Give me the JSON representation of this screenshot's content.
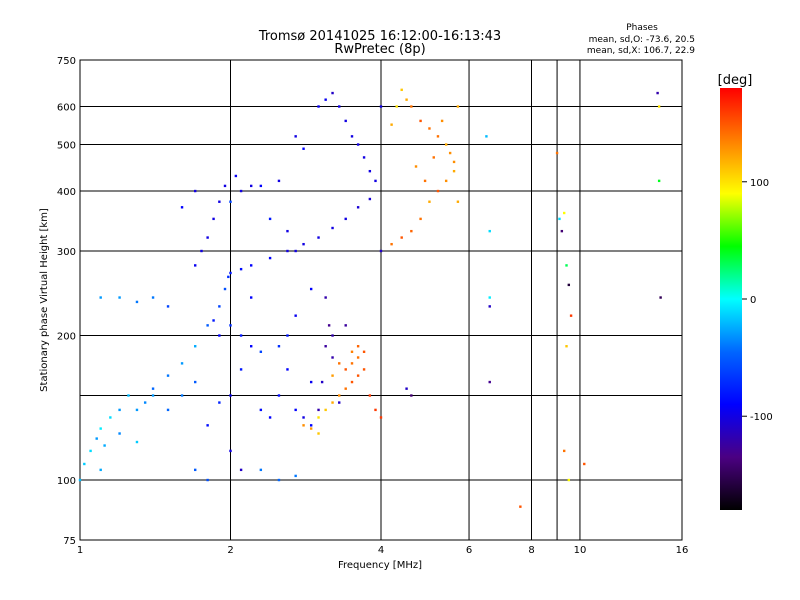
{
  "chart_data": {
    "type": "scatter",
    "title": "Tromsø 20141025 16:12:00-16:13:43",
    "subtitle": "RwPretec (8p)",
    "xlabel": "Frequency [MHz]",
    "ylabel": "Stationary phase Virtual Height [km]",
    "x_scale": "log",
    "y_scale": "log",
    "xlim": [
      1,
      16
    ],
    "ylim": [
      75,
      750
    ],
    "x_ticks": [
      1,
      2,
      4,
      6,
      8,
      10,
      16
    ],
    "x_minor_ticks": [
      9
    ],
    "y_ticks": [
      75,
      100,
      200,
      300,
      400,
      500,
      600,
      750
    ],
    "y_minor_ticks": [
      150
    ],
    "grid": true,
    "info_title": "Phases",
    "info_lines": [
      "mean, sd,O: -73.6, 20.5",
      "mean, sd,X: 106.7, 22.9"
    ],
    "colorbar": {
      "label": "[deg]",
      "range": [
        -180,
        180
      ],
      "ticks": [
        -100,
        0,
        100
      ],
      "colormap": [
        "#000000",
        "#4b0082",
        "#0000ff",
        "#0066ff",
        "#00ffff",
        "#00ff00",
        "#ffff00",
        "#ff8000",
        "#ff0000"
      ]
    },
    "series": [
      {
        "values": [
          [
            1.0,
            100,
            -20
          ],
          [
            1.02,
            108,
            -15
          ],
          [
            1.05,
            115,
            -10
          ],
          [
            1.08,
            122,
            -30
          ],
          [
            1.1,
            128,
            -5
          ],
          [
            1.12,
            118,
            -25
          ],
          [
            1.15,
            135,
            -10
          ],
          [
            1.2,
            140,
            -30
          ],
          [
            1.25,
            150,
            -20
          ],
          [
            1.3,
            120,
            -15
          ],
          [
            1.35,
            145,
            -35
          ],
          [
            1.4,
            155,
            -45
          ],
          [
            1.5,
            165,
            -40
          ],
          [
            1.6,
            175,
            -30
          ],
          [
            1.7,
            190,
            -25
          ],
          [
            1.8,
            210,
            -50
          ],
          [
            1.9,
            230,
            -60
          ],
          [
            1.95,
            250,
            -55
          ],
          [
            1.98,
            265,
            -70
          ],
          [
            2.0,
            270,
            -80
          ],
          [
            2.1,
            275,
            -85
          ],
          [
            2.2,
            280,
            -90
          ],
          [
            2.4,
            290,
            -90
          ],
          [
            2.6,
            300,
            -100
          ],
          [
            2.8,
            310,
            -100
          ],
          [
            3.0,
            320,
            -100
          ],
          [
            3.2,
            335,
            -100
          ],
          [
            3.4,
            350,
            -100
          ],
          [
            3.6,
            370,
            -105
          ],
          [
            3.8,
            385,
            -105
          ],
          [
            4.0,
            300,
            -110
          ],
          [
            1.7,
            280,
            -95
          ],
          [
            1.75,
            300,
            -100
          ],
          [
            1.8,
            320,
            -100
          ],
          [
            1.85,
            350,
            -100
          ],
          [
            1.9,
            380,
            -100
          ],
          [
            1.95,
            410,
            -100
          ],
          [
            2.05,
            430,
            -95
          ],
          [
            2.1,
            400,
            -100
          ],
          [
            2.3,
            410,
            -90
          ],
          [
            2.5,
            420,
            -100
          ],
          [
            2.7,
            520,
            -100
          ],
          [
            2.8,
            490,
            -90
          ],
          [
            3.0,
            600,
            -95
          ],
          [
            3.1,
            620,
            -95
          ],
          [
            3.2,
            640,
            -110
          ],
          [
            3.3,
            600,
            -100
          ],
          [
            3.4,
            560,
            -100
          ],
          [
            3.5,
            520,
            -100
          ],
          [
            3.6,
            500,
            -100
          ],
          [
            3.7,
            470,
            -100
          ],
          [
            3.8,
            440,
            -100
          ],
          [
            3.9,
            420,
            -100
          ],
          [
            4.0,
            600,
            -100
          ],
          [
            2.0,
            380,
            -60
          ],
          [
            2.2,
            410,
            -100
          ],
          [
            2.4,
            350,
            -80
          ],
          [
            2.6,
            330,
            -100
          ],
          [
            2.7,
            300,
            -100
          ],
          [
            2.9,
            250,
            -90
          ],
          [
            3.1,
            240,
            -120
          ],
          [
            3.2,
            200,
            -120
          ],
          [
            1.6,
            370,
            -90
          ],
          [
            1.7,
            400,
            -100
          ],
          [
            1.5,
            230,
            -60
          ],
          [
            1.4,
            240,
            -40
          ],
          [
            1.3,
            235,
            -40
          ],
          [
            1.2,
            240,
            -30
          ],
          [
            1.1,
            240,
            -30
          ]
        ]
      },
      {
        "values": [
          [
            1.8,
            130,
            -85
          ],
          [
            1.9,
            145,
            -75
          ],
          [
            2.0,
            150,
            -95
          ],
          [
            2.1,
            170,
            -80
          ],
          [
            2.2,
            190,
            -90
          ],
          [
            2.3,
            140,
            -85
          ],
          [
            2.4,
            135,
            -90
          ],
          [
            2.5,
            150,
            -85
          ],
          [
            2.6,
            170,
            -90
          ],
          [
            2.7,
            140,
            -90
          ],
          [
            2.8,
            135,
            -100
          ],
          [
            2.9,
            130,
            -90
          ],
          [
            3.0,
            140,
            -120
          ],
          [
            3.05,
            160,
            -110
          ],
          [
            3.1,
            190,
            -125
          ],
          [
            3.15,
            210,
            -130
          ],
          [
            2.9,
            160,
            -95
          ],
          [
            2.6,
            200,
            -80
          ],
          [
            2.7,
            220,
            -95
          ],
          [
            2.5,
            190,
            -70
          ],
          [
            2.3,
            185,
            -60
          ],
          [
            2.1,
            200,
            -80
          ],
          [
            2.0,
            210,
            -70
          ],
          [
            1.9,
            200,
            -90
          ],
          [
            1.85,
            215,
            -80
          ],
          [
            2.2,
            240,
            -90
          ],
          [
            3.3,
            145,
            -110
          ],
          [
            3.2,
            180,
            -120
          ],
          [
            3.4,
            210,
            -125
          ],
          [
            1.7,
            160,
            -50
          ],
          [
            1.6,
            150,
            -40
          ],
          [
            1.5,
            140,
            -45
          ],
          [
            1.4,
            150,
            -30
          ],
          [
            1.3,
            140,
            -30
          ],
          [
            1.2,
            125,
            -35
          ],
          [
            1.1,
            105,
            -25
          ],
          [
            1.7,
            105,
            -50
          ],
          [
            1.8,
            100,
            -55
          ],
          [
            2.0,
            115,
            -100
          ],
          [
            2.1,
            105,
            -110
          ],
          [
            2.3,
            105,
            -40
          ],
          [
            2.5,
            100,
            -45
          ],
          [
            2.7,
            102,
            -40
          ],
          [
            4.6,
            150,
            -140
          ],
          [
            4.5,
            155,
            -110
          ]
        ]
      },
      {
        "values": [
          [
            4.2,
            310,
            140
          ],
          [
            4.4,
            320,
            150
          ],
          [
            4.6,
            330,
            145
          ],
          [
            4.8,
            350,
            140
          ],
          [
            5.0,
            380,
            120
          ],
          [
            5.2,
            400,
            150
          ],
          [
            5.4,
            420,
            130
          ],
          [
            5.6,
            440,
            120
          ],
          [
            5.7,
            380,
            120
          ],
          [
            5.6,
            460,
            130
          ],
          [
            5.5,
            480,
            130
          ],
          [
            5.4,
            500,
            120
          ],
          [
            5.2,
            520,
            140
          ],
          [
            5.0,
            540,
            140
          ],
          [
            4.8,
            560,
            150
          ],
          [
            4.6,
            600,
            140
          ],
          [
            4.5,
            620,
            120
          ],
          [
            4.4,
            650,
            110
          ],
          [
            4.7,
            450,
            130
          ],
          [
            4.9,
            420,
            140
          ],
          [
            5.1,
            470,
            140
          ],
          [
            5.3,
            560,
            130
          ],
          [
            5.7,
            600,
            120
          ],
          [
            4.3,
            600,
            100
          ],
          [
            4.2,
            550,
            120
          ]
        ]
      },
      {
        "values": [
          [
            3.0,
            135,
            100
          ],
          [
            3.1,
            140,
            110
          ],
          [
            3.2,
            145,
            120
          ],
          [
            3.3,
            150,
            130
          ],
          [
            3.4,
            155,
            140
          ],
          [
            3.5,
            160,
            150
          ],
          [
            3.6,
            165,
            150
          ],
          [
            3.7,
            170,
            150
          ],
          [
            3.8,
            150,
            160
          ],
          [
            3.9,
            140,
            160
          ],
          [
            4.0,
            135,
            160
          ],
          [
            3.4,
            170,
            150
          ],
          [
            3.5,
            175,
            140
          ],
          [
            3.6,
            180,
            140
          ],
          [
            3.7,
            185,
            150
          ],
          [
            3.6,
            190,
            145
          ],
          [
            3.5,
            185,
            135
          ],
          [
            3.3,
            175,
            140
          ],
          [
            3.2,
            165,
            125
          ],
          [
            2.8,
            130,
            130
          ],
          [
            2.9,
            128,
            125
          ],
          [
            3.0,
            125,
            110
          ]
        ]
      },
      {
        "values": [
          [
            6.5,
            520,
            -20
          ],
          [
            6.6,
            330,
            -10
          ],
          [
            6.6,
            240,
            -5
          ],
          [
            6.6,
            230,
            -110
          ],
          [
            6.6,
            160,
            -130
          ],
          [
            7.6,
            88,
            150
          ],
          [
            9.0,
            480,
            140
          ],
          [
            9.1,
            350,
            -10
          ],
          [
            9.2,
            330,
            -140
          ],
          [
            9.3,
            360,
            90
          ],
          [
            9.4,
            280,
            30
          ],
          [
            9.5,
            255,
            -160
          ],
          [
            9.6,
            220,
            160
          ],
          [
            9.4,
            190,
            110
          ],
          [
            9.3,
            115,
            140
          ],
          [
            9.5,
            100,
            90
          ],
          [
            10.2,
            108,
            150
          ],
          [
            14.3,
            640,
            -120
          ],
          [
            14.4,
            420,
            40
          ],
          [
            14.5,
            240,
            -150
          ],
          [
            14.4,
            600,
            100
          ]
        ]
      }
    ]
  }
}
